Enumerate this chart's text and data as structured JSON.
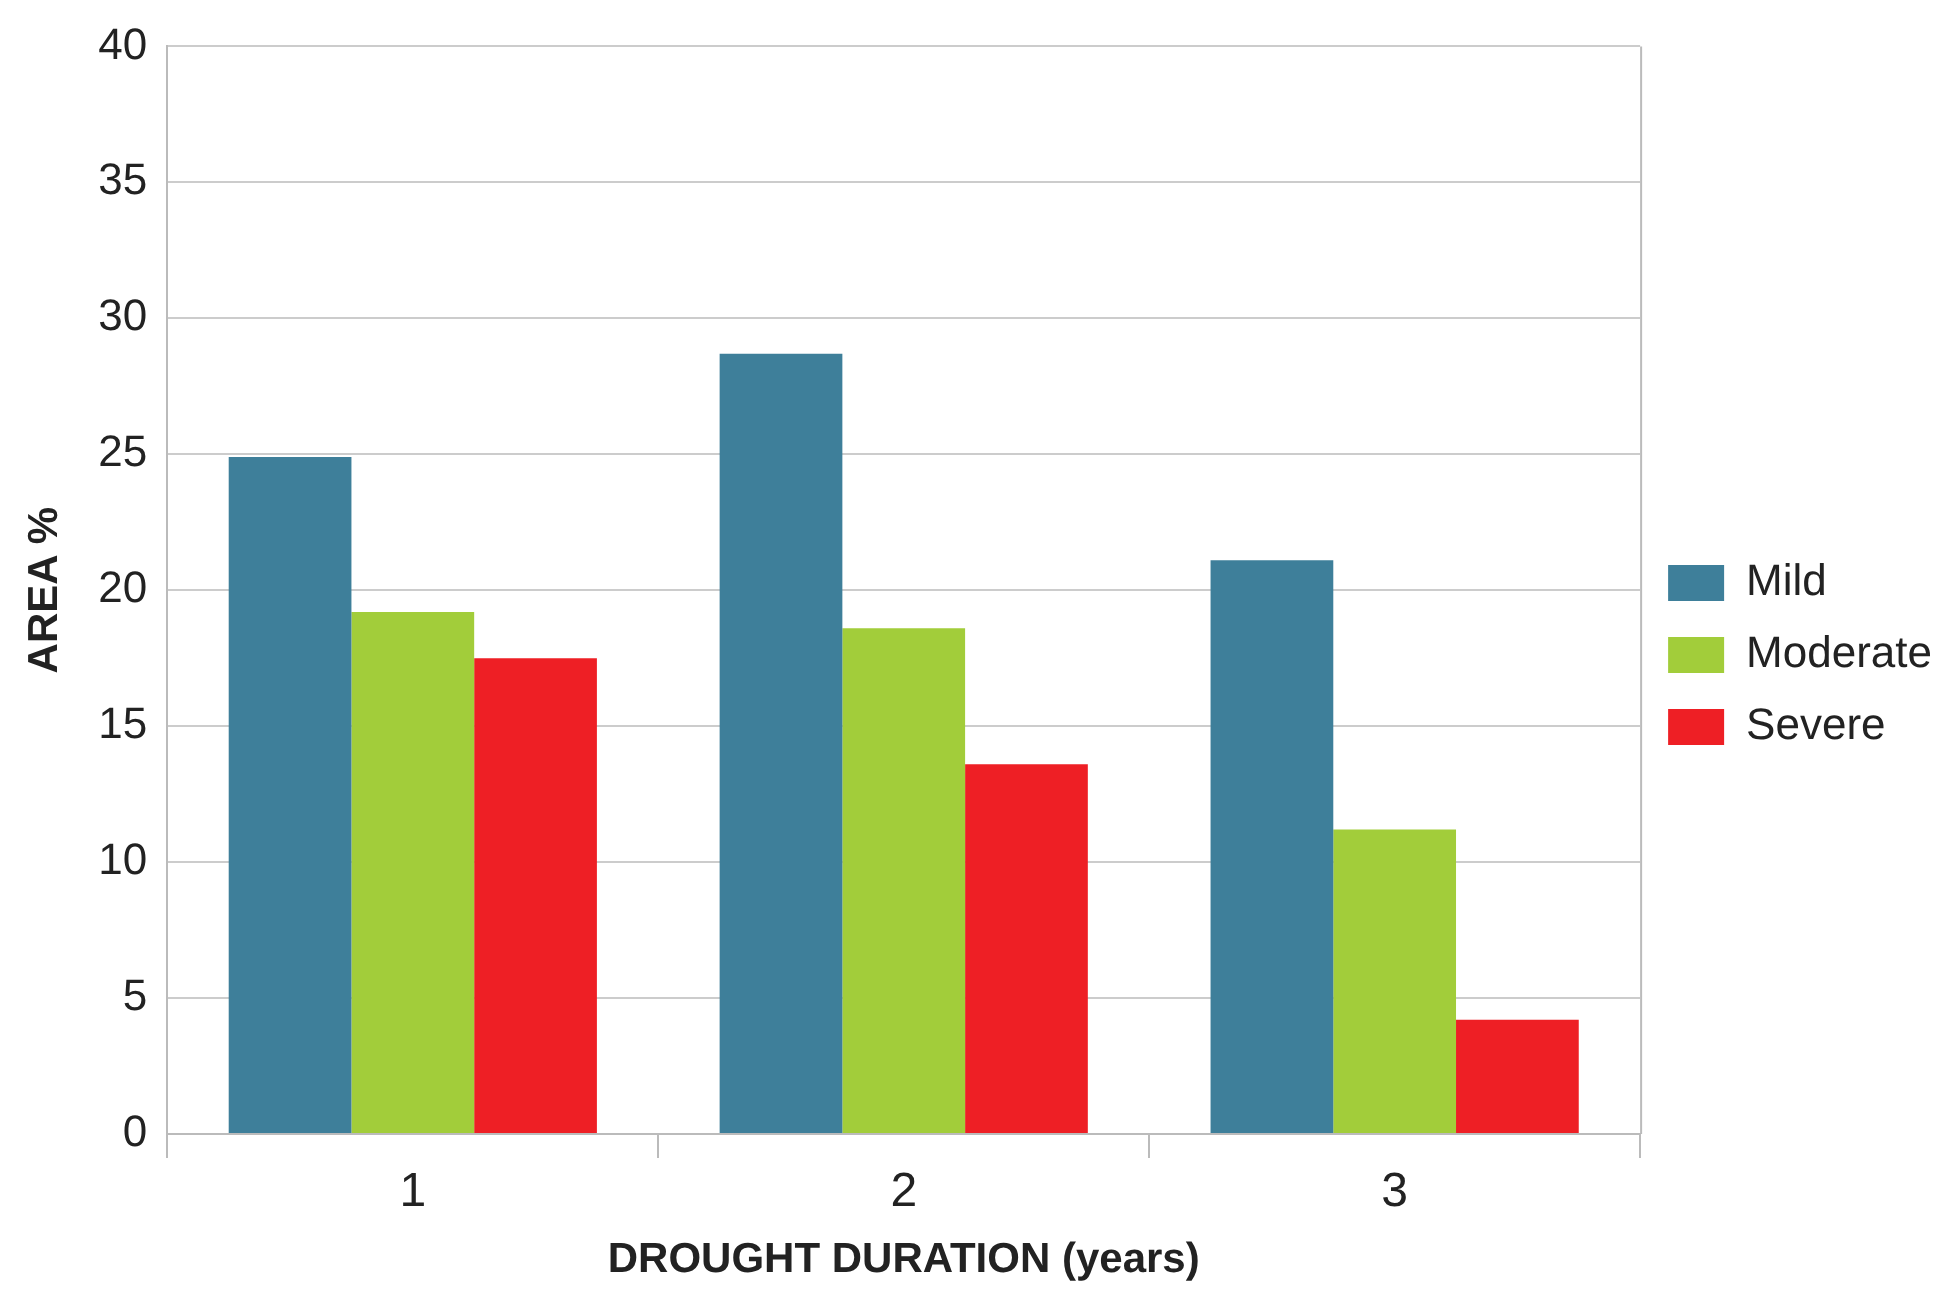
{
  "chart_data": {
    "type": "bar",
    "xlabel": "DROUGHT DURATION (years)",
    "ylabel": "AREA %",
    "categories": [
      "1",
      "2",
      "3"
    ],
    "series": [
      {
        "name": "Mild",
        "color": "#3e7f9a",
        "values": [
          24.9,
          28.7,
          21.1
        ]
      },
      {
        "name": "Moderate",
        "color": "#a2cd3a",
        "values": [
          19.2,
          18.6,
          11.2
        ]
      },
      {
        "name": "Severe",
        "color": "#ee1f25",
        "values": [
          17.5,
          13.6,
          4.2
        ]
      }
    ],
    "ylim": [
      0,
      40
    ],
    "yticks": [
      0,
      5,
      10,
      15,
      20,
      25,
      30,
      35,
      40
    ],
    "grid": "y",
    "legend": "right"
  }
}
